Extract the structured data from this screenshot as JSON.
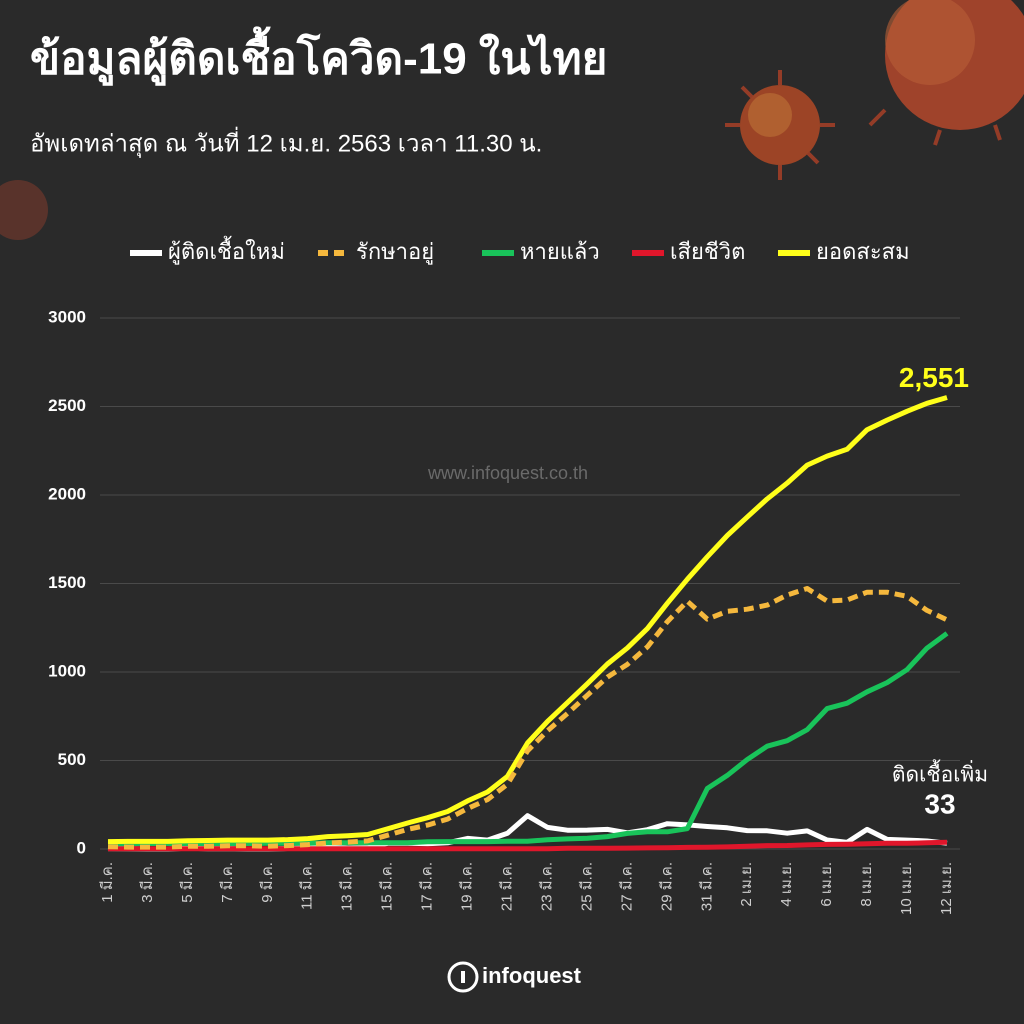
{
  "chart_data": {
    "type": "line",
    "title": "ข้อมูลผู้ติดเชื้อโควิด-19 ในไทย",
    "subtitle": "อัพเดทล่าสุด ณ วันที่ 12 เม.ย. 2563 เวลา 11.30 น.",
    "watermark": "www.infoquest.co.th",
    "logo": "infoquest",
    "annotation": "ติดเชื้อเพิ่ม",
    "categories": [
      "1 มี.ค.",
      null,
      "3 มี.ค.",
      null,
      "5 มี.ค.",
      null,
      "7 มี.ค.",
      null,
      "9 มี.ค.",
      null,
      "11 มี.ค.",
      null,
      "13 มี.ค.",
      null,
      "15 มี.ค.",
      null,
      "17 มี.ค.",
      null,
      "19 มี.ค.",
      null,
      "21 มี.ค.",
      null,
      "23 มี.ค.",
      null,
      "25 มี.ค.",
      null,
      "27 มี.ค.",
      null,
      "29 มี.ค.",
      null,
      "31 มี.ค.",
      null,
      "2 เม.ย.",
      null,
      "4 เม.ย.",
      null,
      "6 เม.ย.",
      null,
      "8 เม.ย.",
      null,
      "10 เม.ย.",
      null,
      "12 เม.ย."
    ],
    "series": [
      {
        "name": "ผู้ติดเชื้อใหม่",
        "color": "#ffffff",
        "values": [
          2,
          1,
          0,
          0,
          4,
          1,
          2,
          0,
          0,
          3,
          6,
          11,
          5,
          7,
          32,
          33,
          30,
          35,
          60,
          50,
          89,
          188,
          122,
          106,
          107,
          111,
          91,
          109,
          143,
          136,
          127,
          120,
          104,
          103,
          89,
          102,
          51,
          38,
          111,
          54,
          50,
          45,
          33
        ]
      },
      {
        "name": "รักษาอยู่",
        "color": "#f5b83d",
        "dashed": true,
        "values": [
          13,
          11,
          11,
          11,
          15,
          16,
          18,
          18,
          16,
          19,
          25,
          34,
          39,
          46,
          78,
          111,
          135,
          169,
          229,
          279,
          366,
          554,
          668,
          766,
          869,
          971,
          1043,
          1142,
          1284,
          1400,
          1299,
          1343,
          1355,
          1378,
          1435,
          1472,
          1401,
          1407,
          1451,
          1451,
          1427,
          1348,
          1295
        ]
      },
      {
        "name": "หายแล้ว",
        "color": "#19c35a",
        "values": [
          28,
          31,
          31,
          31,
          31,
          31,
          31,
          31,
          33,
          33,
          33,
          35,
          35,
          35,
          35,
          35,
          41,
          42,
          42,
          42,
          44,
          44,
          52,
          57,
          61,
          70,
          88,
          97,
          97,
          115,
          342,
          416,
          505,
          581,
          612,
          674,
          793,
          824,
          888,
          940,
          1013,
          1135,
          1218
        ]
      },
      {
        "name": "เสียชีวิต",
        "color": "#e0162b",
        "values": [
          1,
          1,
          1,
          1,
          1,
          1,
          1,
          1,
          1,
          1,
          1,
          1,
          1,
          1,
          1,
          1,
          1,
          1,
          1,
          1,
          1,
          1,
          1,
          4,
          4,
          4,
          5,
          6,
          7,
          9,
          10,
          12,
          15,
          19,
          20,
          23,
          26,
          27,
          30,
          32,
          33,
          35,
          38
        ]
      },
      {
        "name": "ยอดสะสม",
        "color": "#ffff1a",
        "values": [
          42,
          43,
          43,
          43,
          47,
          48,
          50,
          50,
          50,
          53,
          59,
          70,
          75,
          82,
          114,
          147,
          177,
          212,
          272,
          322,
          411,
          599,
          721,
          827,
          934,
          1045,
          1136,
          1245,
          1388,
          1524,
          1651,
          1771,
          1875,
          1978,
          2067,
          2169,
          2220,
          2258,
          2369,
          2423,
          2473,
          2518,
          2551
        ],
        "value_labels": [
          null,
          null,
          null,
          null,
          null,
          null,
          null,
          null,
          null,
          null,
          null,
          null,
          null,
          null,
          null,
          null,
          null,
          null,
          null,
          null,
          null,
          null,
          null,
          null,
          null,
          null,
          null,
          null,
          null,
          null,
          null,
          null,
          null,
          null,
          null,
          null,
          null,
          null,
          null,
          null,
          null,
          null,
          "2,551"
        ]
      }
    ],
    "ylim": [
      0,
      3000
    ],
    "yticks": [
      0,
      500,
      1000,
      1500,
      2000,
      2500,
      3000
    ],
    "grid": true,
    "legend": "top"
  }
}
